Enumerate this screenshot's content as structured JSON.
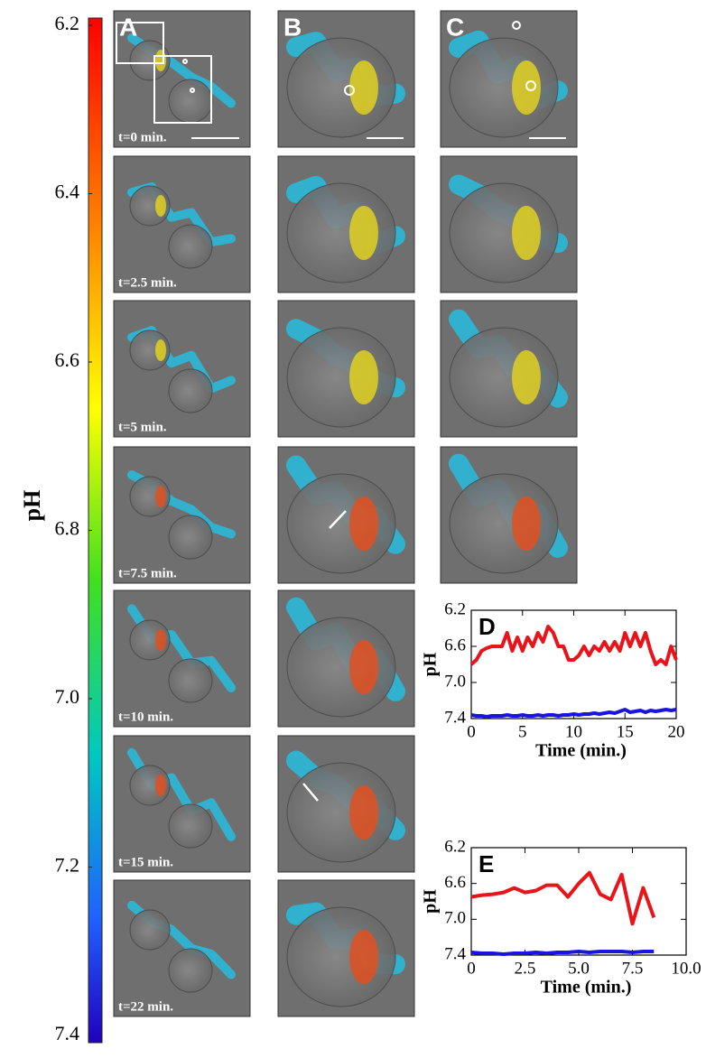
{
  "colorbar": {
    "label": "pH",
    "lim": [
      6.2,
      7.4
    ],
    "ticks": [
      6.2,
      6.4,
      6.6,
      6.8,
      {
        "value": 7,
        "label": "7.0"
      },
      7.2,
      7.4
    ]
  },
  "panels": {
    "columns": [
      "A",
      "B",
      "C"
    ],
    "times": [
      "t=0 min.",
      "t=2.5 min.",
      "t=5 min.",
      "t=7.5 min.",
      "t=10 min.",
      "t=15 min.",
      "t=22 min."
    ]
  },
  "chart_data": [
    {
      "type": "line",
      "annotation": "D",
      "xlabel": "Time (min.)",
      "ylabel": "pH",
      "x": [
        0,
        0.5,
        1,
        1.5,
        2,
        2.5,
        3,
        3.5,
        4,
        4.5,
        5,
        5.5,
        6,
        6.5,
        7,
        7.5,
        8,
        8.5,
        9,
        9.5,
        10,
        10.5,
        11,
        11.5,
        12,
        12.5,
        13,
        13.5,
        14,
        14.5,
        15,
        15.5,
        16,
        16.5,
        17,
        17.5,
        18,
        18.5,
        19,
        19.5,
        20
      ],
      "series": [
        {
          "color": "#e8141a",
          "values": [
            6.8,
            6.75,
            6.65,
            6.62,
            6.6,
            6.6,
            6.6,
            6.45,
            6.65,
            6.5,
            6.65,
            6.5,
            6.6,
            6.45,
            6.55,
            6.38,
            6.45,
            6.6,
            6.6,
            6.75,
            6.75,
            6.7,
            6.6,
            6.7,
            6.6,
            6.65,
            6.55,
            6.65,
            6.55,
            6.65,
            6.45,
            6.6,
            6.45,
            6.6,
            6.45,
            6.65,
            6.8,
            6.75,
            6.8,
            6.6,
            6.75
          ]
        },
        {
          "color": "#1a14e0",
          "values": [
            7.36,
            7.37,
            7.37,
            7.38,
            7.37,
            7.37,
            7.37,
            7.36,
            7.37,
            7.37,
            7.36,
            7.37,
            7.37,
            7.36,
            7.37,
            7.36,
            7.36,
            7.37,
            7.36,
            7.36,
            7.35,
            7.36,
            7.35,
            7.35,
            7.34,
            7.35,
            7.34,
            7.33,
            7.34,
            7.32,
            7.3,
            7.33,
            7.32,
            7.31,
            7.33,
            7.31,
            7.32,
            7.31,
            7.3,
            7.31,
            7.3
          ]
        }
      ],
      "xlim": [
        0,
        20
      ],
      "xticks": [
        0,
        5,
        10,
        15,
        20
      ],
      "ylim": [
        7.4,
        6.2
      ],
      "yticks": [
        6.2,
        6.6,
        {
          "value": 7,
          "label": "7.0"
        },
        7.4
      ]
    },
    {
      "type": "line",
      "annotation": "E",
      "xlabel": "Time (min.)",
      "ylabel": "pH",
      "x": [
        0,
        0.5,
        1,
        1.5,
        2,
        2.5,
        3,
        3.5,
        4,
        4.5,
        5,
        5.5,
        6,
        6.5,
        7,
        7.5,
        8,
        8.5
      ],
      "series": [
        {
          "color": "#e8141a",
          "values": [
            6.75,
            6.73,
            6.72,
            6.7,
            6.65,
            6.7,
            6.68,
            6.62,
            6.62,
            6.75,
            6.6,
            6.48,
            6.72,
            6.78,
            6.5,
            7.05,
            6.65,
            6.98
          ]
        },
        {
          "color": "#1a14e0",
          "values": [
            7.37,
            7.38,
            7.38,
            7.39,
            7.38,
            7.38,
            7.37,
            7.38,
            7.37,
            7.37,
            7.36,
            7.37,
            7.36,
            7.36,
            7.36,
            7.37,
            7.36,
            7.36
          ]
        }
      ],
      "xlim": [
        0,
        10
      ],
      "xticks": [
        0,
        2.5,
        {
          "value": 5,
          "label": "5.0"
        },
        7.5,
        {
          "value": 10,
          "label": "10.0"
        }
      ],
      "ylim": [
        7.4,
        6.2
      ],
      "yticks": [
        6.2,
        6.6,
        {
          "value": 7,
          "label": "7.0"
        },
        7.4
      ]
    }
  ]
}
